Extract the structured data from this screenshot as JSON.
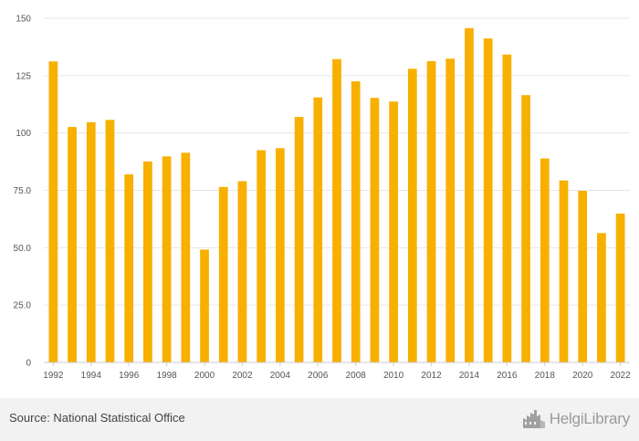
{
  "chart_data": {
    "type": "bar",
    "title": "",
    "xlabel": "",
    "ylabel": "",
    "categories": [
      "1992",
      "1993",
      "1994",
      "1995",
      "1996",
      "1997",
      "1998",
      "1999",
      "2000",
      "2001",
      "2002",
      "2003",
      "2004",
      "2005",
      "2006",
      "2007",
      "2008",
      "2009",
      "2010",
      "2011",
      "2012",
      "2013",
      "2014",
      "2015",
      "2016",
      "2017",
      "2018",
      "2019",
      "2020",
      "2021",
      "2022"
    ],
    "values": [
      131.2,
      102.6,
      104.7,
      105.7,
      82,
      87.6,
      89.8,
      91.4,
      49.2,
      76.5,
      79,
      92.5,
      93.4,
      107,
      115.5,
      132.2,
      122.5,
      115.3,
      113.7,
      128,
      131.3,
      132.4,
      145.7,
      141.2,
      134.2,
      116.5,
      88.9,
      79.3,
      74.8,
      56.4,
      64.9
    ],
    "x_tick_labels": [
      "1992",
      "1994",
      "1996",
      "1998",
      "2000",
      "2002",
      "2004",
      "2006",
      "2008",
      "2010",
      "2012",
      "2014",
      "2016",
      "2018",
      "2020",
      "2022"
    ],
    "y_ticks": [
      0,
      25,
      50,
      75,
      100,
      125,
      150
    ],
    "y_tick_labels": [
      "0",
      "25.0",
      "50.0",
      "75.0",
      "100",
      "125",
      "150"
    ],
    "ylim": [
      0,
      150
    ],
    "grid": true,
    "legend": "none",
    "colors": {
      "bar": "#f7b000",
      "grid": "#e6e6e6",
      "axis": "#cccccc"
    }
  },
  "footer": {
    "source": "Source: National Statistical Office",
    "brand": "HelgiLibrary"
  },
  "icons": {
    "brand_logo": "factory-icon"
  }
}
